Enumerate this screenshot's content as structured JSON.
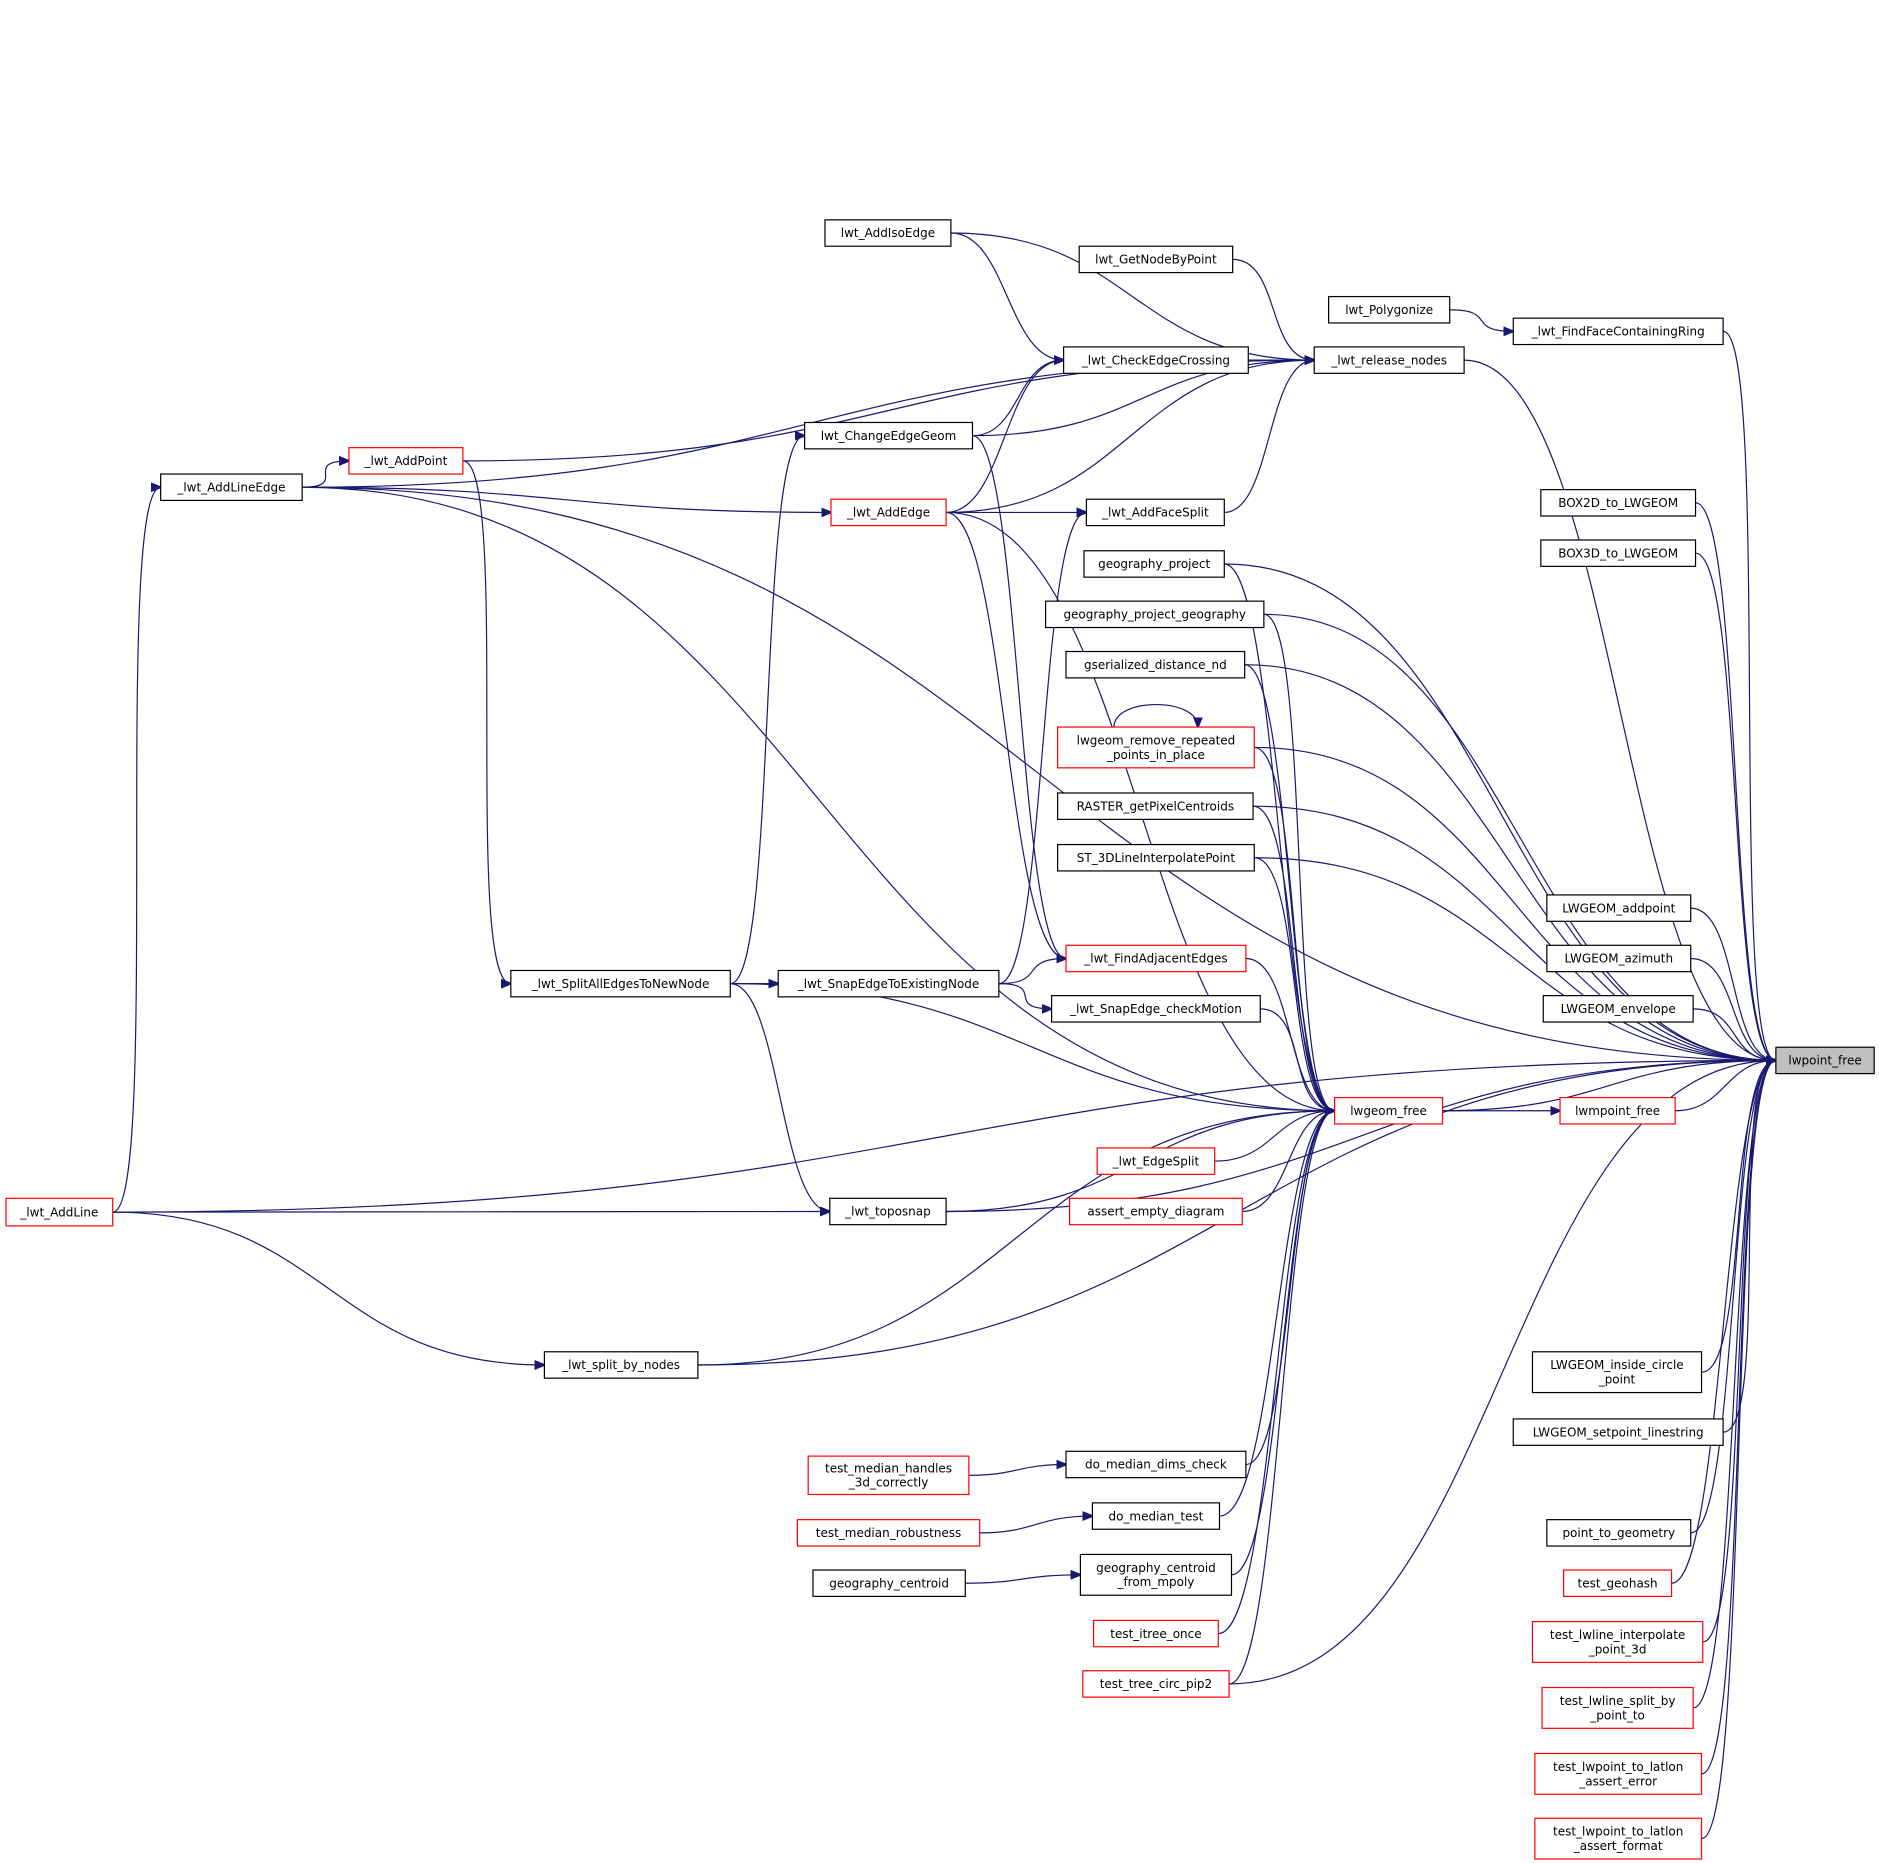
{
  "colors": {
    "edge": "#191970",
    "focus_fill": "#bfbfbf",
    "red_border": "#ff0000",
    "border": "#000000"
  },
  "nodes": [
    {
      "id": "lwpoint_free",
      "label": "lwpoint_free",
      "focus": true
    },
    {
      "id": "lwgeom_free",
      "label": "lwgeom_free",
      "red": true
    },
    {
      "id": "lwmpoint_free",
      "label": "lwmpoint_free",
      "red": true
    },
    {
      "id": "release_nodes",
      "label": "_lwt_release_nodes"
    },
    {
      "id": "find_face",
      "label": "_lwt_FindFaceContainingRing"
    },
    {
      "id": "polygonize",
      "label": "lwt_Polygonize"
    },
    {
      "id": "add_iso_edge",
      "label": "lwt_AddIsoEdge"
    },
    {
      "id": "get_node",
      "label": "lwt_GetNodeByPoint"
    },
    {
      "id": "check_crossing",
      "label": "_lwt_CheckEdgeCrossing"
    },
    {
      "id": "change_edge",
      "label": "lwt_ChangeEdgeGeom"
    },
    {
      "id": "add_point",
      "label": "_lwt_AddPoint",
      "red": true
    },
    {
      "id": "add_line_edge",
      "label": "_lwt_AddLineEdge"
    },
    {
      "id": "add_edge",
      "label": "_lwt_AddEdge",
      "red": true
    },
    {
      "id": "add_face_split",
      "label": "_lwt_AddFaceSplit"
    },
    {
      "id": "box2d",
      "label": "BOX2D_to_LWGEOM"
    },
    {
      "id": "box3d",
      "label": "BOX3D_to_LWGEOM"
    },
    {
      "id": "geog_project",
      "label": "geography_project"
    },
    {
      "id": "geog_project_geog",
      "label": "geography_project_geography"
    },
    {
      "id": "gser_dist",
      "label": "gserialized_distance_nd"
    },
    {
      "id": "remove_repeated",
      "label": "lwgeom_remove_repeated\n_points_in_place",
      "red": true
    },
    {
      "id": "raster_centroids",
      "label": "RASTER_getPixelCentroids"
    },
    {
      "id": "st_3dline",
      "label": "ST_3DLineInterpolatePoint"
    },
    {
      "id": "lw_addpoint",
      "label": "LWGEOM_addpoint"
    },
    {
      "id": "lw_azimuth",
      "label": "LWGEOM_azimuth"
    },
    {
      "id": "lw_envelope",
      "label": "LWGEOM_envelope"
    },
    {
      "id": "find_adjacent",
      "label": "_lwt_FindAdjacentEdges",
      "red": true
    },
    {
      "id": "split_all",
      "label": "_lwt_SplitAllEdgesToNewNode"
    },
    {
      "id": "snap_existing",
      "label": "_lwt_SnapEdgeToExistingNode"
    },
    {
      "id": "snap_motion",
      "label": "_lwt_SnapEdge_checkMotion"
    },
    {
      "id": "edge_split",
      "label": "_lwt_EdgeSplit",
      "red": true
    },
    {
      "id": "assert_empty",
      "label": "assert_empty_diagram",
      "red": true
    },
    {
      "id": "toposnap",
      "label": "_lwt_toposnap"
    },
    {
      "id": "add_line",
      "label": "_lwt_AddLine",
      "red": true
    },
    {
      "id": "split_by_nodes",
      "label": "_lwt_split_by_nodes"
    },
    {
      "id": "inside_circle",
      "label": "LWGEOM_inside_circle\n_point"
    },
    {
      "id": "setpoint",
      "label": "LWGEOM_setpoint_linestring"
    },
    {
      "id": "median_3d",
      "label": "test_median_handles\n_3d_correctly",
      "red": true
    },
    {
      "id": "median_dims",
      "label": "do_median_dims_check"
    },
    {
      "id": "median_test",
      "label": "do_median_test"
    },
    {
      "id": "median_robust",
      "label": "test_median_robustness",
      "red": true
    },
    {
      "id": "centroid_mpoly",
      "label": "geography_centroid\n_from_mpoly"
    },
    {
      "id": "geog_centroid",
      "label": "geography_centroid"
    },
    {
      "id": "point_to_geom",
      "label": "point_to_geometry"
    },
    {
      "id": "test_geohash",
      "label": "test_geohash",
      "red": true
    },
    {
      "id": "itree_once",
      "label": "test_itree_once",
      "red": true
    },
    {
      "id": "tree_circ",
      "label": "test_tree_circ_pip2",
      "red": true
    },
    {
      "id": "interp_3d",
      "label": "test_lwline_interpolate\n_point_3d",
      "red": true
    },
    {
      "id": "split_by_point",
      "label": "test_lwline_split_by\n_point_to",
      "red": true
    },
    {
      "id": "latlon_error",
      "label": "test_lwpoint_to_latlon\n_assert_error",
      "red": true
    },
    {
      "id": "latlon_format",
      "label": "test_lwpoint_to_latlon\n_assert_format",
      "red": true
    }
  ],
  "edges": [
    [
      "release_nodes",
      "lwpoint_free"
    ],
    [
      "find_face",
      "lwpoint_free"
    ],
    [
      "box2d",
      "lwpoint_free"
    ],
    [
      "box3d",
      "lwpoint_free"
    ],
    [
      "geog_project",
      "lwpoint_free"
    ],
    [
      "geog_project_geog",
      "lwpoint_free"
    ],
    [
      "gser_dist",
      "lwpoint_free"
    ],
    [
      "remove_repeated",
      "lwpoint_free"
    ],
    [
      "raster_centroids",
      "lwpoint_free"
    ],
    [
      "st_3dline",
      "lwpoint_free"
    ],
    [
      "lw_addpoint",
      "lwpoint_free"
    ],
    [
      "lw_azimuth",
      "lwpoint_free"
    ],
    [
      "lw_envelope",
      "lwpoint_free"
    ],
    [
      "lwgeom_free",
      "lwpoint_free"
    ],
    [
      "lwmpoint_free",
      "lwpoint_free"
    ],
    [
      "inside_circle",
      "lwpoint_free"
    ],
    [
      "setpoint",
      "lwpoint_free"
    ],
    [
      "point_to_geom",
      "lwpoint_free"
    ],
    [
      "test_geohash",
      "lwpoint_free"
    ],
    [
      "interp_3d",
      "lwpoint_free"
    ],
    [
      "split_by_point",
      "lwpoint_free"
    ],
    [
      "latlon_error",
      "lwpoint_free"
    ],
    [
      "latlon_format",
      "lwpoint_free"
    ],
    [
      "add_line",
      "lwpoint_free"
    ],
    [
      "add_line_edge",
      "lwpoint_free"
    ],
    [
      "split_by_nodes",
      "lwpoint_free"
    ],
    [
      "tree_circ",
      "lwpoint_free"
    ],
    [
      "toposnap",
      "lwpoint_free"
    ],
    [
      "lwgeom_free",
      "lwmpoint_free"
    ],
    [
      "find_adjacent",
      "lwgeom_free"
    ],
    [
      "snap_motion",
      "lwgeom_free"
    ],
    [
      "split_all",
      "lwgeom_free"
    ],
    [
      "edge_split",
      "lwgeom_free"
    ],
    [
      "assert_empty",
      "lwgeom_free"
    ],
    [
      "toposnap",
      "lwgeom_free"
    ],
    [
      "split_by_nodes",
      "lwgeom_free"
    ],
    [
      "add_line_edge",
      "lwgeom_free"
    ],
    [
      "median_dims",
      "lwgeom_free"
    ],
    [
      "median_test",
      "lwgeom_free"
    ],
    [
      "centroid_mpoly",
      "lwgeom_free"
    ],
    [
      "itree_once",
      "lwgeom_free"
    ],
    [
      "tree_circ",
      "lwgeom_free"
    ],
    [
      "add_edge",
      "lwgeom_free"
    ],
    [
      "remove_repeated",
      "lwgeom_free"
    ],
    [
      "raster_centroids",
      "lwgeom_free"
    ],
    [
      "st_3dline",
      "lwgeom_free"
    ],
    [
      "geog_project",
      "lwgeom_free"
    ],
    [
      "geog_project_geog",
      "lwgeom_free"
    ],
    [
      "gser_dist",
      "lwgeom_free"
    ],
    [
      "add_line_edge",
      "release_nodes"
    ],
    [
      "add_iso_edge",
      "release_nodes"
    ],
    [
      "get_node",
      "release_nodes"
    ],
    [
      "check_crossing",
      "release_nodes"
    ],
    [
      "change_edge",
      "release_nodes"
    ],
    [
      "add_point",
      "release_nodes"
    ],
    [
      "add_edge",
      "release_nodes"
    ],
    [
      "add_face_split",
      "release_nodes"
    ],
    [
      "polygonize",
      "find_face"
    ],
    [
      "add_iso_edge",
      "check_crossing"
    ],
    [
      "change_edge",
      "check_crossing"
    ],
    [
      "add_edge",
      "check_crossing"
    ],
    [
      "split_all",
      "change_edge"
    ],
    [
      "add_line_edge",
      "add_point"
    ],
    [
      "add_line",
      "add_line_edge"
    ],
    [
      "add_line_edge",
      "add_edge"
    ],
    [
      "add_edge",
      "add_face_split"
    ],
    [
      "snap_existing",
      "add_face_split"
    ],
    [
      "add_edge",
      "find_adjacent"
    ],
    [
      "change_edge",
      "find_adjacent"
    ],
    [
      "snap_existing",
      "find_adjacent"
    ],
    [
      "split_all",
      "snap_existing"
    ],
    [
      "snap_existing",
      "snap_motion"
    ],
    [
      "add_point",
      "split_all"
    ],
    [
      "split_all",
      "toposnap"
    ],
    [
      "add_line",
      "toposnap"
    ],
    [
      "add_line",
      "split_by_nodes"
    ],
    [
      "median_3d",
      "median_dims"
    ],
    [
      "median_robust",
      "median_test"
    ],
    [
      "geog_centroid",
      "centroid_mpoly"
    ],
    [
      "remove_repeated",
      "remove_repeated"
    ]
  ]
}
